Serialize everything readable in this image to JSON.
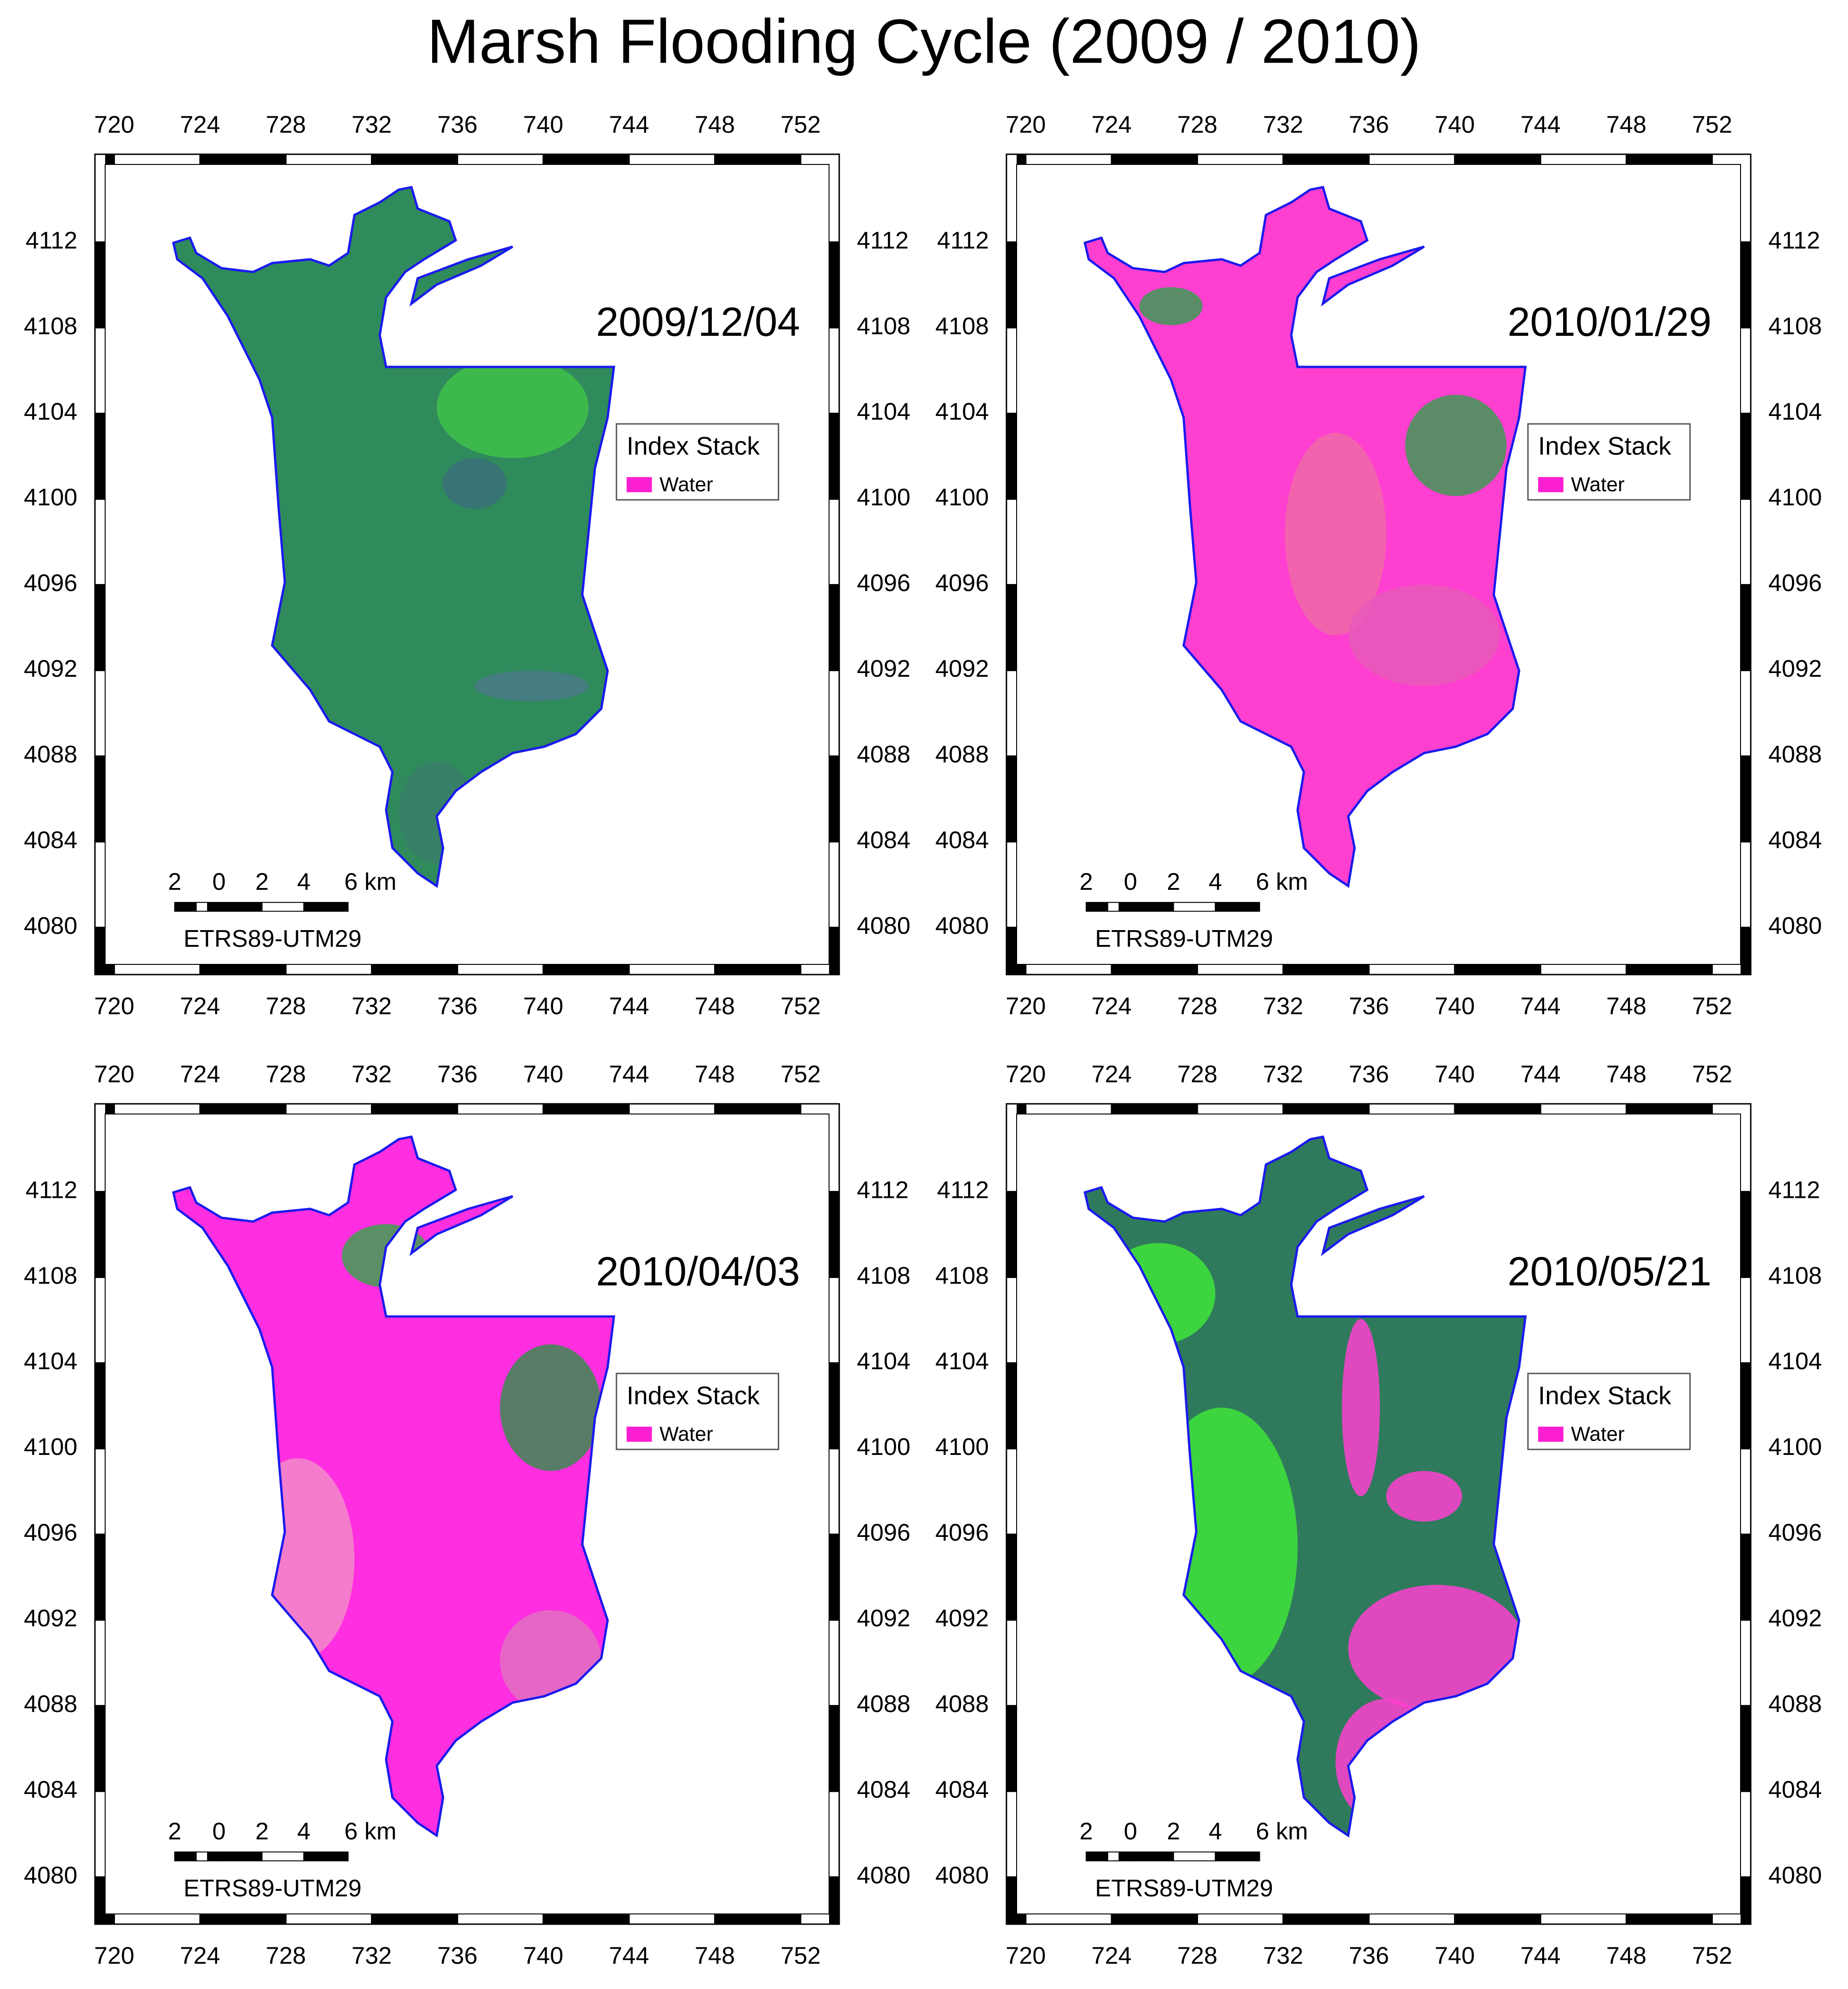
{
  "title": "Marsh Flooding Cycle (2009 / 2010)",
  "panels": [
    {
      "date": "2009/12/04",
      "legend": {
        "title": "Index Stack",
        "items": [
          {
            "label": "Water",
            "color": "#ff1fd2"
          }
        ]
      },
      "scale_bar": {
        "labels": [
          "2",
          "0",
          "2",
          "4",
          "6 km"
        ]
      },
      "projection": "ETRS89-UTM29",
      "xlim": [
        719.1,
        753.8
      ],
      "ylim": [
        4077.8,
        4116.1
      ],
      "xticks": [
        720,
        724,
        728,
        732,
        736,
        740,
        744,
        748,
        752
      ],
      "yticks": [
        4080,
        4084,
        4088,
        4092,
        4096,
        4100,
        4104,
        4108,
        4112
      ]
    },
    {
      "date": "2010/01/29",
      "legend": {
        "title": "Index Stack",
        "items": [
          {
            "label": "Water",
            "color": "#ff1fd2"
          }
        ]
      },
      "scale_bar": {
        "labels": [
          "2",
          "0",
          "2",
          "4",
          "6 km"
        ]
      },
      "projection": "ETRS89-UTM29",
      "xlim": [
        719.1,
        753.8
      ],
      "ylim": [
        4077.8,
        4116.1
      ],
      "xticks": [
        720,
        724,
        728,
        732,
        736,
        740,
        744,
        748,
        752
      ],
      "yticks": [
        4080,
        4084,
        4088,
        4092,
        4096,
        4100,
        4104,
        4108,
        4112
      ]
    },
    {
      "date": "2010/04/03",
      "legend": {
        "title": "Index Stack",
        "items": [
          {
            "label": "Water",
            "color": "#ff1fd2"
          }
        ]
      },
      "scale_bar": {
        "labels": [
          "2",
          "0",
          "2",
          "4",
          "6 km"
        ]
      },
      "projection": "ETRS89-UTM29",
      "xlim": [
        719.1,
        753.8
      ],
      "ylim": [
        4077.8,
        4116.1
      ],
      "xticks": [
        720,
        724,
        728,
        732,
        736,
        740,
        744,
        748,
        752
      ],
      "yticks": [
        4080,
        4084,
        4088,
        4092,
        4096,
        4100,
        4104,
        4108,
        4112
      ]
    },
    {
      "date": "2010/05/21",
      "legend": {
        "title": "Index Stack",
        "items": [
          {
            "label": "Water",
            "color": "#ff1fd2"
          }
        ]
      },
      "scale_bar": {
        "labels": [
          "2",
          "0",
          "2",
          "4",
          "6 km"
        ]
      },
      "projection": "ETRS89-UTM29",
      "xlim": [
        719.1,
        753.8
      ],
      "ylim": [
        4077.8,
        4116.1
      ],
      "xticks": [
        720,
        724,
        728,
        732,
        736,
        740,
        744,
        748,
        752
      ],
      "yticks": [
        4080,
        4084,
        4088,
        4092,
        4096,
        4100,
        4104,
        4108,
        4112
      ]
    }
  ]
}
